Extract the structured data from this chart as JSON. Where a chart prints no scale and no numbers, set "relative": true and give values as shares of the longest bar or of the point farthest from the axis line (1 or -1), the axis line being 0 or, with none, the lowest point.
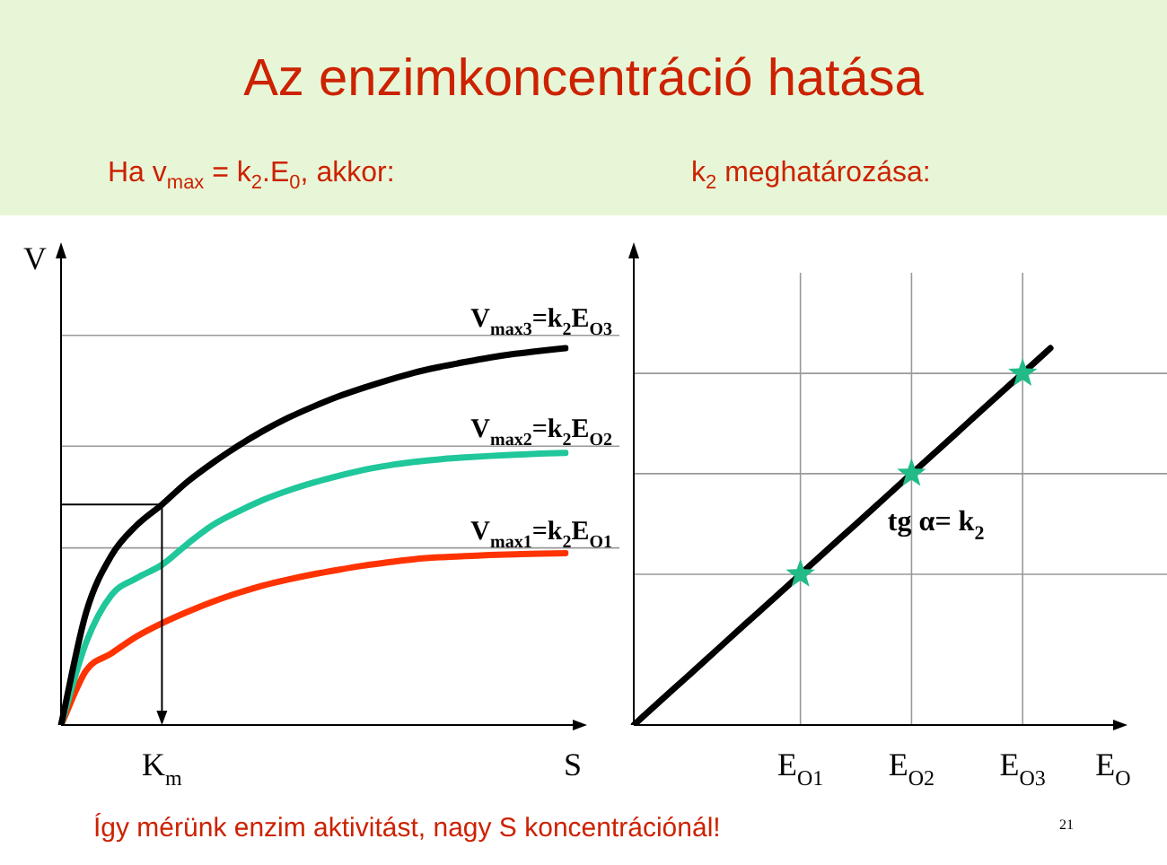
{
  "chart_data": [
    {
      "type": "line",
      "title": "Az enzimkoncentráció hatása",
      "subtitle": "Ha v$_{max}$ = k$_{2}$.E$_{0}$, akkor:",
      "xlabel": "S",
      "ylabel": "V",
      "relative": true,
      "grid": false,
      "legend": false,
      "marker": "none",
      "line_style": "solid",
      "categories": [
        null,
        null,
        null,
        null,
        null,
        null,
        null,
        null,
        null,
        null,
        null,
        null,
        null,
        null,
        null,
        null,
        null,
        null,
        null,
        null,
        null
      ],
      "series": [
        {
          "color": "#000000",
          "values": [
            0,
            0.3,
            0.45,
            0.53,
            0.585,
            0.645,
            0.695,
            0.74,
            0.78,
            0.815,
            0.845,
            0.872,
            0.895,
            0.916,
            0.935,
            0.95,
            0.963,
            0.975,
            0.985,
            0.993,
            1.0
          ]
        },
        {
          "color": "#1fc79a",
          "values": [
            0,
            0.22,
            0.345,
            0.39,
            0.425,
            0.48,
            0.53,
            0.566,
            0.597,
            0.622,
            0.643,
            0.661,
            0.677,
            0.689,
            0.698,
            0.705,
            0.71,
            0.714,
            0.717,
            0.72,
            0.722
          ]
        },
        {
          "color": "#ff3300",
          "values": [
            0,
            0.145,
            0.19,
            0.235,
            0.27,
            0.3,
            0.327,
            0.35,
            0.37,
            0.386,
            0.4,
            0.412,
            0.423,
            0.432,
            0.44,
            0.445,
            0.448,
            0.451,
            0.453,
            0.455,
            0.456
          ]
        },
        {
          "color": "#000000",
          "values": [
            0.585,
            0.585,
            0.585,
            0.585,
            0.585,
            null,
            null,
            null,
            null,
            null,
            null,
            null,
            null,
            null,
            null,
            null,
            null,
            null,
            null,
            null,
            null
          ]
        }
      ],
      "ref_lines": [
        {
          "axis": "y",
          "value": 1.034,
          "label": "V$_{max3}$=k$_{2}$E$_{O3}$",
          "color": "#999999"
        },
        {
          "axis": "y",
          "value": 0.74,
          "label": "V$_{max2}$=k$_{2}$E$_{O2}$",
          "color": "#999999"
        },
        {
          "axis": "y",
          "value": 0.47,
          "label": "V$_{max1}$=k$_{2}$E$_{O1}$",
          "color": "#999999"
        }
      ],
      "annotations": [
        "K$_{m}$",
        "Így mérünk enzim aktivitást, nagy S koncentrációnál!",
        "21"
      ]
    },
    {
      "type": "line",
      "subtitle": "k$_{2}$ meghatározása:",
      "xlabel": "E$_{O}$",
      "relative": true,
      "grid": false,
      "legend": false,
      "line_style": "solid",
      "categories": [
        null,
        null,
        null,
        null,
        null,
        null,
        "E$_{O1}$",
        null,
        null,
        null,
        "E$_{O2}$",
        null,
        null,
        null,
        "E$_{O3}$",
        null,
        null,
        null
      ],
      "series": [
        {
          "color": "#000000",
          "marker": "none",
          "values": [
            0,
            0.067,
            0.133,
            0.2,
            0.267,
            0.333,
            0.4,
            0.467,
            0.533,
            0.6,
            0.667,
            0.733,
            0.8,
            0.867,
            0.933,
            1.0,
            null,
            null
          ]
        },
        {
          "type": "scatter",
          "color": "#22bb88",
          "marker": "star",
          "values": [
            null,
            null,
            null,
            null,
            null,
            null,
            0.4,
            null,
            null,
            null,
            0.667,
            null,
            null,
            null,
            0.933,
            null,
            null,
            null
          ]
        }
      ],
      "ref_lines": [
        {
          "axis": "y",
          "value": 0.4,
          "color": "#999999"
        },
        {
          "axis": "y",
          "value": 0.667,
          "color": "#999999"
        },
        {
          "axis": "y",
          "value": 0.933,
          "color": "#999999"
        },
        {
          "axis": "x",
          "value": "E$_{O1}$",
          "color": "#999999"
        },
        {
          "axis": "x",
          "value": "E$_{O2}$",
          "color": "#999999"
        },
        {
          "axis": "x",
          "value": "E$_{O3}$",
          "color": "#999999"
        }
      ],
      "annotations": [
        "tg α= k$_{2}$"
      ]
    }
  ]
}
